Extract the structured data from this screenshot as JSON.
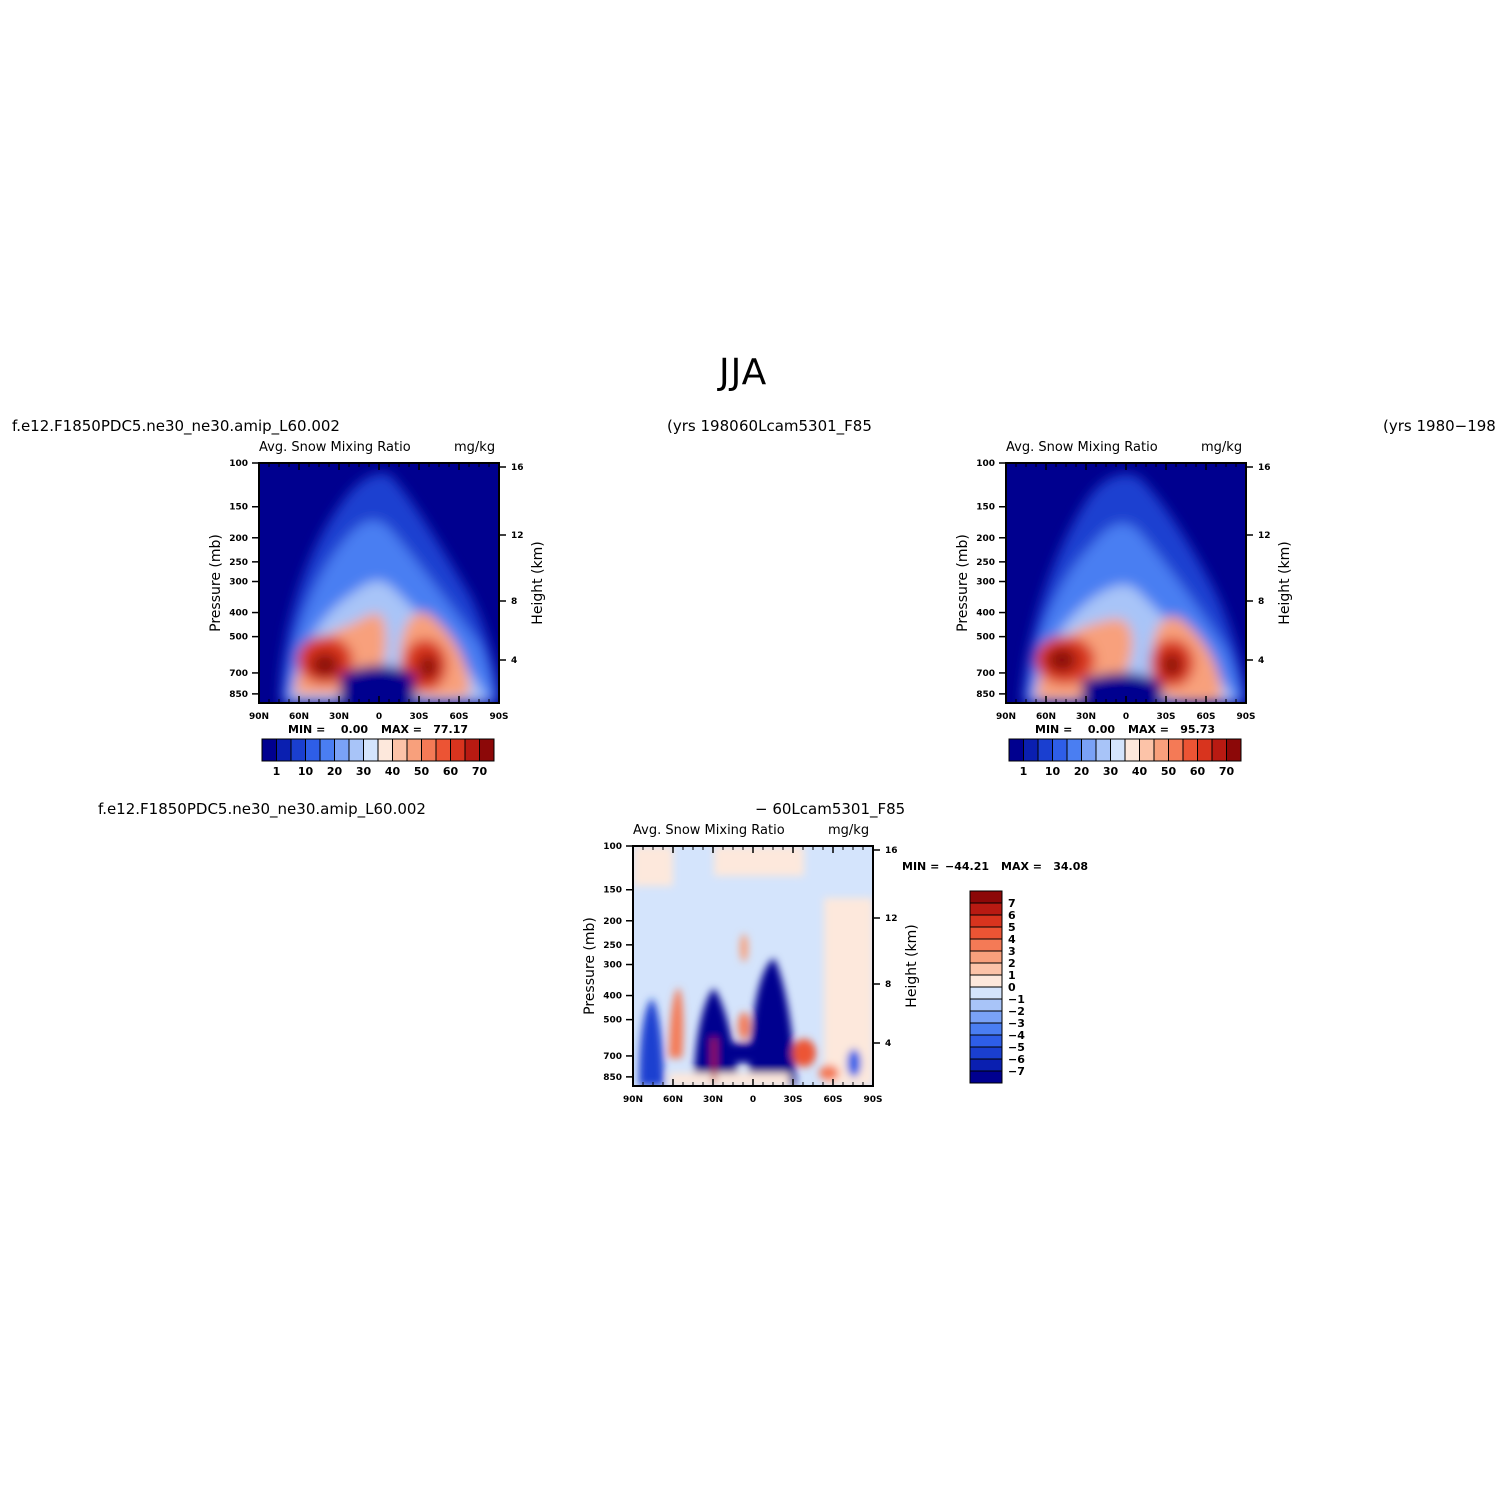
{
  "title": "JJA",
  "labels": {
    "case1": "f.e12.F1850PDC5.ne30_ne30.amip_L60.002",
    "yrs1": "(yrs 1980",
    "case2": "60Lcam5301_F85",
    "yrs2": "(yrs 1980−198",
    "diff_case": "f.e12.F1850PDC5.ne30_ne30.amip_L60.002",
    "diff_op": "− 60Lcam5301_F85"
  },
  "chart_data": [
    {
      "type": "heatmap",
      "title": "Avg. Snow Mixing Ratio",
      "units": "mg/kg",
      "ylabel": "Pressure (mb)",
      "y2label": "Height (km)",
      "x_ticks": [
        "90N",
        "60N",
        "30N",
        "0",
        "30S",
        "60S",
        "90S"
      ],
      "y_ticks": [
        "100",
        "150",
        "200",
        "250",
        "300",
        "400",
        "500",
        "700",
        "850"
      ],
      "y2_ticks": [
        "16",
        "12",
        "8",
        "4"
      ],
      "min_label": "MIN =",
      "min_value": "0.00",
      "max_label": "MAX =",
      "max_value": "77.17",
      "colorbar_labels": [
        "1",
        "10",
        "20",
        "30",
        "40",
        "50",
        "60",
        "70"
      ],
      "colors": [
        "#00008f",
        "#0a1fb0",
        "#1a3fd0",
        "#2e5ee8",
        "#4a7ef2",
        "#7aa2f6",
        "#a8c4f8",
        "#d4e4fc",
        "#fde8dc",
        "#fcc3a8",
        "#f8a07c",
        "#f47a56",
        "#ec5434",
        "#d8341e",
        "#b81a12",
        "#8c0808"
      ],
      "grid": false
    },
    {
      "type": "heatmap",
      "title": "Avg. Snow Mixing Ratio",
      "units": "mg/kg",
      "ylabel": "Pressure (mb)",
      "y2label": "Height (km)",
      "x_ticks": [
        "90N",
        "60N",
        "30N",
        "0",
        "30S",
        "60S",
        "90S"
      ],
      "y_ticks": [
        "100",
        "150",
        "200",
        "250",
        "300",
        "400",
        "500",
        "700",
        "850"
      ],
      "y2_ticks": [
        "16",
        "12",
        "8",
        "4"
      ],
      "min_label": "MIN =",
      "min_value": "0.00",
      "max_label": "MAX =",
      "max_value": "95.73",
      "colorbar_labels": [
        "1",
        "10",
        "20",
        "30",
        "40",
        "50",
        "60",
        "70"
      ],
      "colors": [
        "#00008f",
        "#0a1fb0",
        "#1a3fd0",
        "#2e5ee8",
        "#4a7ef2",
        "#7aa2f6",
        "#a8c4f8",
        "#d4e4fc",
        "#fde8dc",
        "#fcc3a8",
        "#f8a07c",
        "#f47a56",
        "#ec5434",
        "#d8341e",
        "#b81a12",
        "#8c0808"
      ],
      "grid": false
    },
    {
      "type": "heatmap",
      "title": "Avg. Snow Mixing Ratio",
      "units": "mg/kg",
      "ylabel": "Pressure (mb)",
      "y2label": "Height (km)",
      "x_ticks": [
        "90N",
        "60N",
        "30N",
        "0",
        "30S",
        "60S",
        "90S"
      ],
      "y_ticks": [
        "100",
        "150",
        "200",
        "250",
        "300",
        "400",
        "500",
        "700",
        "850"
      ],
      "y2_ticks": [
        "16",
        "12",
        "8",
        "4"
      ],
      "min_label": "MIN =",
      "min_value": "−44.21",
      "max_label": "MAX =",
      "max_value": "34.08",
      "colorbar_labels": [
        "7",
        "6",
        "5",
        "4",
        "3",
        "2",
        "1",
        "0",
        "−1",
        "−2",
        "−3",
        "−4",
        "−5",
        "−6",
        "−7"
      ],
      "colors": [
        "#8c0808",
        "#b81a12",
        "#d8341e",
        "#ec5434",
        "#f47a56",
        "#f8a07c",
        "#fcc3a8",
        "#fde8dc",
        "#d4e4fc",
        "#a8c4f8",
        "#7aa2f6",
        "#4a7ef2",
        "#2e5ee8",
        "#1a3fd0",
        "#0a1fb0",
        "#00008f"
      ],
      "grid": false
    }
  ]
}
